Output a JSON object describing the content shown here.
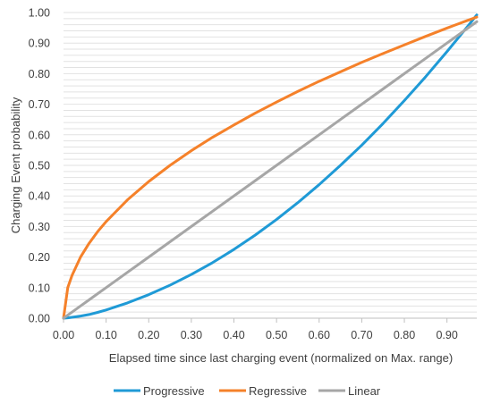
{
  "chart_data": {
    "type": "line",
    "title": "",
    "xlabel": "Elapsed time since last charging event (normalized on Max. range)",
    "ylabel": "Charging Event probability",
    "xlim": [
      0,
      0.97
    ],
    "ylim": [
      0,
      1.0
    ],
    "x_ticks": [
      "0.00",
      "0.10",
      "0.20",
      "0.30",
      "0.40",
      "0.50",
      "0.60",
      "0.70",
      "0.80",
      "0.90"
    ],
    "y_ticks": [
      "0.00",
      "0.10",
      "0.20",
      "0.30",
      "0.40",
      "0.50",
      "0.60",
      "0.70",
      "0.80",
      "0.90",
      "1.00"
    ],
    "grid": "horizontal, every 0.02",
    "legend_position": "bottom",
    "x": [
      0,
      0.01,
      0.02,
      0.04,
      0.06,
      0.08,
      0.1,
      0.15,
      0.2,
      0.25,
      0.3,
      0.35,
      0.4,
      0.45,
      0.5,
      0.55,
      0.6,
      0.65,
      0.7,
      0.75,
      0.8,
      0.85,
      0.9,
      0.95,
      0.97
    ],
    "series": [
      {
        "name": "Progressive",
        "color": "#1f9ad6",
        "values": [
          0,
          0.001,
          0.003,
          0.007,
          0.012,
          0.019,
          0.027,
          0.05,
          0.077,
          0.108,
          0.143,
          0.182,
          0.225,
          0.272,
          0.323,
          0.378,
          0.437,
          0.5,
          0.566,
          0.637,
          0.712,
          0.79,
          0.872,
          0.957,
          0.992
        ]
      },
      {
        "name": "Regressive",
        "color": "#f5812a",
        "values": [
          0,
          0.1,
          0.14,
          0.2,
          0.245,
          0.283,
          0.316,
          0.387,
          0.447,
          0.5,
          0.548,
          0.592,
          0.632,
          0.671,
          0.707,
          0.742,
          0.775,
          0.806,
          0.837,
          0.866,
          0.894,
          0.922,
          0.949,
          0.975,
          0.985
        ]
      },
      {
        "name": "Linear",
        "color": "#a6a6a6",
        "values": [
          0,
          0.01,
          0.02,
          0.04,
          0.06,
          0.08,
          0.1,
          0.15,
          0.2,
          0.25,
          0.3,
          0.35,
          0.4,
          0.45,
          0.5,
          0.55,
          0.6,
          0.65,
          0.7,
          0.75,
          0.8,
          0.85,
          0.9,
          0.95,
          0.97
        ]
      }
    ]
  }
}
